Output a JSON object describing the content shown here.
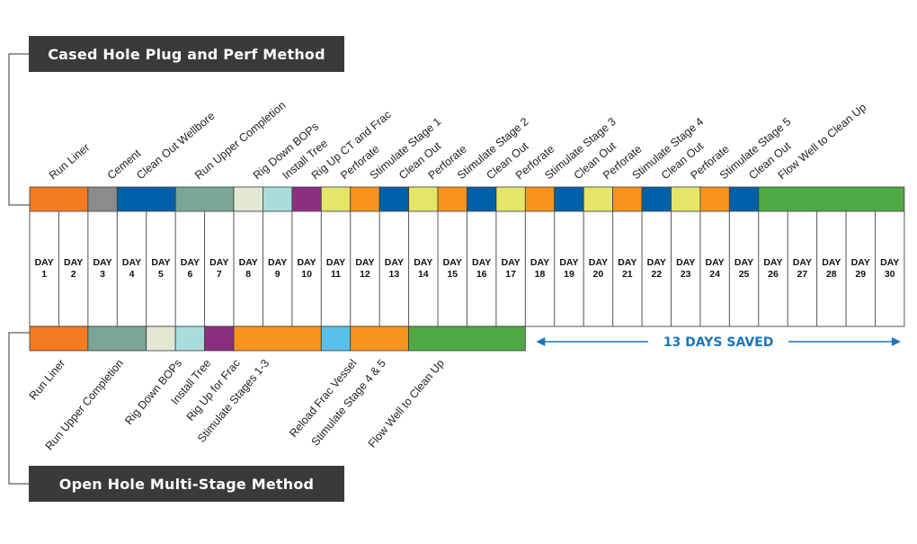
{
  "top": {
    "title": "Cased Hole Plug and Perf Method",
    "tasks": [
      {
        "label": "Run Liner",
        "start": 1,
        "end": 2,
        "color": "#f47b20"
      },
      {
        "label": "Cement",
        "start": 3,
        "end": 3,
        "color": "#8b8b8b"
      },
      {
        "label": "Clean Out Wellbore",
        "start": 4,
        "end": 5,
        "color": "#0060a9"
      },
      {
        "label": "Run Upper Completion",
        "start": 6,
        "end": 7,
        "color": "#7aa597"
      },
      {
        "label": "Rig Down BOPs",
        "start": 8,
        "end": 8,
        "color": "#e2e8d4"
      },
      {
        "label": "Install Tree",
        "start": 9,
        "end": 9,
        "color": "#aadcdc"
      },
      {
        "label": "Rig Up CT and Frac",
        "start": 10,
        "end": 10,
        "color": "#8a2e7e"
      },
      {
        "label": "Perforate",
        "start": 11,
        "end": 11,
        "color": "#e5e56a"
      },
      {
        "label": "Stimulate Stage 1",
        "start": 12,
        "end": 12,
        "color": "#f7941d"
      },
      {
        "label": "Clean Out",
        "start": 13,
        "end": 13,
        "color": "#0060a9"
      },
      {
        "label": "Perforate",
        "start": 14,
        "end": 14,
        "color": "#e5e56a"
      },
      {
        "label": "Stimulate Stage 2",
        "start": 15,
        "end": 15,
        "color": "#f7941d"
      },
      {
        "label": "Clean Out",
        "start": 16,
        "end": 16,
        "color": "#0060a9"
      },
      {
        "label": "Perforate",
        "start": 17,
        "end": 17,
        "color": "#e5e56a"
      },
      {
        "label": "Stimulate Stage 3",
        "start": 18,
        "end": 18,
        "color": "#f7941d"
      },
      {
        "label": "Clean Out",
        "start": 19,
        "end": 19,
        "color": "#0060a9"
      },
      {
        "label": "Perforate",
        "start": 20,
        "end": 20,
        "color": "#e5e56a"
      },
      {
        "label": "Stimulate Stage 4",
        "start": 21,
        "end": 21,
        "color": "#f7941d"
      },
      {
        "label": "Clean Out",
        "start": 22,
        "end": 22,
        "color": "#0060a9"
      },
      {
        "label": "Perforate",
        "start": 23,
        "end": 23,
        "color": "#e5e56a"
      },
      {
        "label": "Stimulate Stage 5",
        "start": 24,
        "end": 24,
        "color": "#f7941d"
      },
      {
        "label": "Clean Out",
        "start": 25,
        "end": 25,
        "color": "#0060a9"
      },
      {
        "label": "Flow Well to Clean Up",
        "start": 26,
        "end": 30,
        "color": "#4ea843"
      }
    ]
  },
  "days": {
    "prefix": "DAY",
    "numbers": [
      "1",
      "2",
      "3",
      "4",
      "5",
      "6",
      "7",
      "8",
      "9",
      "10",
      "11",
      "12",
      "13",
      "14",
      "15",
      "16",
      "17",
      "18",
      "19",
      "20",
      "21",
      "22",
      "23",
      "24",
      "25",
      "26",
      "27",
      "28",
      "29",
      "30"
    ]
  },
  "bottom": {
    "title": "Open Hole Multi-Stage Method",
    "tasks": [
      {
        "label": "Run Liner",
        "start": 1,
        "end": 2,
        "color": "#f47b20"
      },
      {
        "label": "Run Upper Completion",
        "start": 3,
        "end": 4,
        "color": "#7aa597"
      },
      {
        "label": "Rig Down BOPs",
        "start": 5,
        "end": 5,
        "color": "#e2e8d4"
      },
      {
        "label": "Install Tree",
        "start": 6,
        "end": 6,
        "color": "#aadcdc"
      },
      {
        "label": "Rig Up for Frac",
        "start": 7,
        "end": 7,
        "color": "#8a2e7e"
      },
      {
        "label": "Stimulate Stages 1-3",
        "start": 8,
        "end": 10,
        "color": "#f7941d"
      },
      {
        "label": "Reload Frac Vessel",
        "start": 11,
        "end": 11,
        "color": "#5bc0e8"
      },
      {
        "label": "Stimulate Stage 4 & 5",
        "start": 12,
        "end": 13,
        "color": "#f7941d"
      },
      {
        "label": "Flow Well to Clean Up",
        "start": 14,
        "end": 17,
        "color": "#4ea843"
      }
    ]
  },
  "savings": {
    "label": "13 DAYS SAVED",
    "start_day": 18,
    "end_day": 30,
    "color": "#1b75bb"
  }
}
